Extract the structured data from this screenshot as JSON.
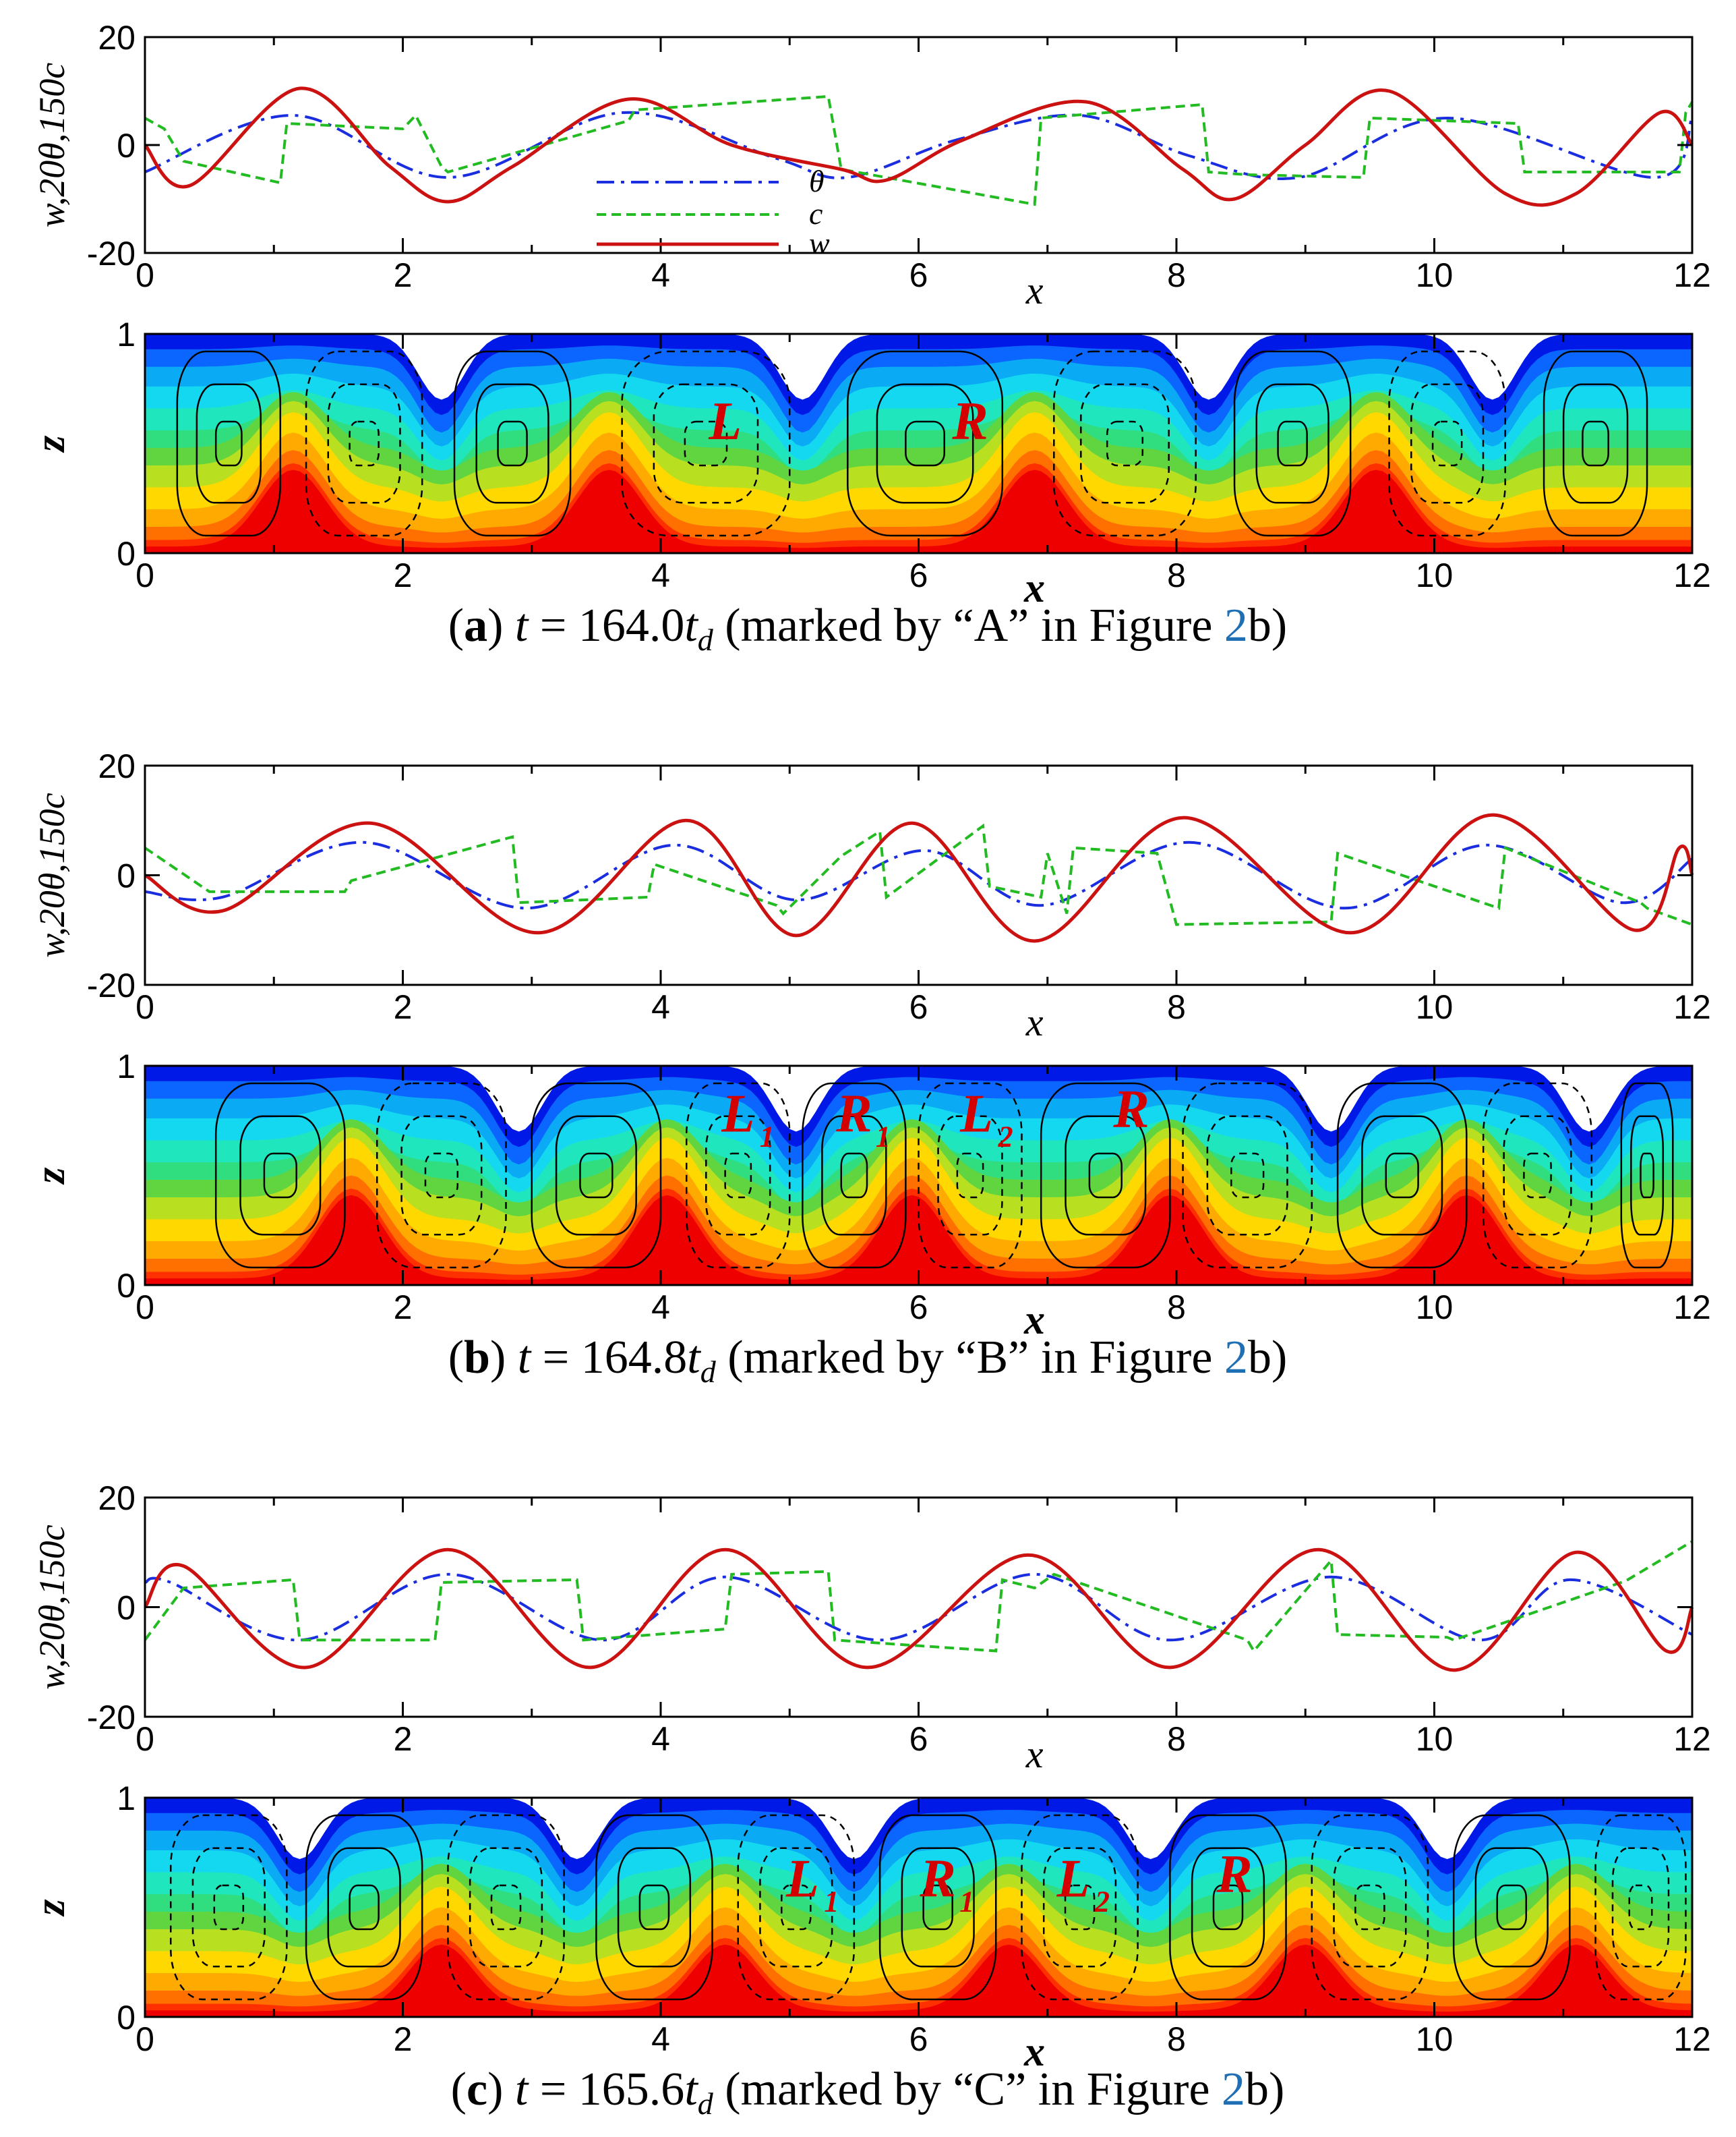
{
  "colors": {
    "w": "#cc1111",
    "theta": "#1a2ee0",
    "c": "#22bb22",
    "cell_label": "#d40000",
    "figure_ref": "#1f6fb5",
    "contour_bands": [
      "#0019e6",
      "#0a66ff",
      "#0aaaf5",
      "#14d8f0",
      "#20e6be",
      "#30de80",
      "#60d540",
      "#b8e020",
      "#ffd800",
      "#ffaa00",
      "#ff7000",
      "#ff3000",
      "#ee0000"
    ]
  },
  "legend": {
    "theta": "θ",
    "c": "c",
    "w": "w"
  },
  "panels": [
    {
      "id": "a",
      "caption": {
        "letter": "(a)",
        "pre": "t",
        "eq": "= 164.0",
        "sym": "t",
        "sub": "d",
        "text": "(marked by “A” in Figure ",
        "ref": "2",
        "tail": "b)"
      },
      "cells": [
        {
          "text": "L",
          "sub": "",
          "x": 4.5,
          "z": 0.52
        },
        {
          "text": "R",
          "sub": "",
          "x": 6.4,
          "z": 0.52
        }
      ]
    },
    {
      "id": "b",
      "caption": {
        "letter": "(b)",
        "pre": "t",
        "eq": "= 164.8",
        "sym": "t",
        "sub": "d",
        "text": "(marked by “B” in Figure ",
        "ref": "2",
        "tail": "b)"
      },
      "cells": [
        {
          "text": "L",
          "sub": "1",
          "x": 4.6,
          "z": 0.7
        },
        {
          "text": "R",
          "sub": "1",
          "x": 5.5,
          "z": 0.7
        },
        {
          "text": "L",
          "sub": "2",
          "x": 6.45,
          "z": 0.7
        },
        {
          "text": "R",
          "sub": "",
          "x": 7.65,
          "z": 0.72
        }
      ]
    },
    {
      "id": "c",
      "caption": {
        "letter": "(c)",
        "pre": "t",
        "eq": "= 165.6",
        "sym": "t",
        "sub": "d",
        "text": "(marked by “C” in Figure ",
        "ref": "2",
        "tail": "b)"
      },
      "cells": [
        {
          "text": "L",
          "sub": "1",
          "x": 5.1,
          "z": 0.55
        },
        {
          "text": "R",
          "sub": "1",
          "x": 6.15,
          "z": 0.55
        },
        {
          "text": "L",
          "sub": "2",
          "x": 7.2,
          "z": 0.55
        },
        {
          "text": "R",
          "sub": "",
          "x": 8.45,
          "z": 0.57
        }
      ]
    }
  ],
  "chart_data": [
    {
      "type": "line",
      "panel": "a",
      "xlabel": "x",
      "ylabel": "w,20θ,150c",
      "xlim": [
        0,
        12
      ],
      "ylim": [
        -20,
        20
      ],
      "xticks": [
        "0",
        "2",
        "4",
        "6",
        "8",
        "10",
        "12"
      ],
      "yticks": [
        "-20",
        "0",
        "20"
      ],
      "legend_position": "inside-bottom-center",
      "series": [
        {
          "name": "θ",
          "style": "dash-dot",
          "x": [
            0,
            1.15,
            2.35,
            3.7,
            4.9,
            5.45,
            6.3,
            7.25,
            8.1,
            8.95,
            10.1,
            11.7,
            12
          ],
          "y": [
            -5,
            5.5,
            -6,
            6,
            -2.5,
            -6,
            1,
            5.5,
            -2,
            -6,
            5,
            -6,
            5
          ]
        },
        {
          "name": "c",
          "style": "dashed",
          "x": [
            0,
            0.15,
            0.3,
            1.05,
            1.1,
            2.0,
            2.1,
            2.3,
            2.35,
            3.75,
            3.8,
            5.3,
            5.4,
            6.9,
            6.95,
            8.2,
            8.25,
            8.55,
            9.45,
            9.5,
            10.65,
            10.7,
            11.9,
            11.95,
            12
          ],
          "y": [
            5,
            3,
            -3,
            -7,
            4,
            3,
            5.5,
            -4,
            -5,
            4.5,
            6.5,
            9,
            -4.5,
            -11,
            5,
            7.5,
            -5,
            -5.5,
            -6,
            5,
            4,
            -5,
            -5,
            6,
            8
          ]
        },
        {
          "name": "w",
          "style": "solid",
          "x": [
            0,
            0.35,
            1.2,
            1.9,
            2.35,
            2.85,
            3.75,
            4.55,
            5.4,
            5.75,
            6.35,
            7.3,
            8.05,
            8.45,
            9.0,
            9.65,
            10.55,
            11.1,
            11.75,
            12
          ],
          "y": [
            0,
            -7.5,
            10.5,
            -4,
            -10.5,
            -4,
            8.5,
            0,
            -4.5,
            -6.5,
            1,
            8,
            -4.5,
            -10,
            0,
            10,
            -9,
            -9,
            6,
            0
          ]
        }
      ]
    },
    {
      "type": "heatmap",
      "panel": "a",
      "xlabel": "x",
      "ylabel": "z",
      "xlim": [
        0,
        12
      ],
      "ylim": [
        0,
        1
      ],
      "xticks": [
        "0",
        "2",
        "4",
        "6",
        "8",
        "10",
        "12"
      ],
      "yticks": [
        "0",
        "1"
      ],
      "plumes": {
        "down_x": [
          2.3,
          5.1,
          8.25,
          10.45
        ],
        "up_x": [
          1.15,
          3.6,
          6.9,
          9.55
        ],
        "down_depth": 0.3,
        "up_height": 0.35
      },
      "rolls": [
        {
          "x": 0.65,
          "z": 0.5,
          "sign": 1,
          "rx": 0.4
        },
        {
          "x": 1.7,
          "z": 0.5,
          "sign": -1,
          "rx": 0.45
        },
        {
          "x": 2.85,
          "z": 0.5,
          "sign": 1,
          "rx": 0.45
        },
        {
          "x": 4.35,
          "z": 0.5,
          "sign": -1,
          "rx": 0.65
        },
        {
          "x": 6.05,
          "z": 0.5,
          "sign": 1,
          "rx": 0.6
        },
        {
          "x": 7.6,
          "z": 0.5,
          "sign": -1,
          "rx": 0.55
        },
        {
          "x": 8.9,
          "z": 0.5,
          "sign": 1,
          "rx": 0.45
        },
        {
          "x": 10.1,
          "z": 0.5,
          "sign": -1,
          "rx": 0.45
        },
        {
          "x": 11.25,
          "z": 0.5,
          "sign": 1,
          "rx": 0.4
        }
      ]
    },
    {
      "type": "line",
      "panel": "b",
      "xlabel": "x",
      "ylabel": "w,20θ,150c",
      "xlim": [
        0,
        12
      ],
      "ylim": [
        -20,
        20
      ],
      "xticks": [
        "0",
        "2",
        "4",
        "6",
        "8",
        "10",
        "12"
      ],
      "yticks": [
        "-20",
        "0",
        "20"
      ],
      "series": [
        {
          "name": "θ",
          "style": "dash-dot",
          "x": [
            0,
            0.6,
            1.7,
            2.95,
            4.1,
            5.05,
            6.05,
            6.95,
            8.1,
            9.3,
            10.4,
            11.45,
            12
          ],
          "y": [
            -3,
            -4,
            6,
            -6,
            5.5,
            -4.5,
            4.5,
            -5.5,
            6,
            -6,
            5.5,
            -5,
            3
          ]
        },
        {
          "name": "c",
          "style": "dashed",
          "x": [
            0,
            0.5,
            1.55,
            1.6,
            2.85,
            2.9,
            3.9,
            3.95,
            4.9,
            4.95,
            5.4,
            5.7,
            5.75,
            6.5,
            6.55,
            6.95,
            7.0,
            7.15,
            7.2,
            7.85,
            8.0,
            9.2,
            9.25,
            10.5,
            10.55,
            11.6,
            11.65,
            12
          ],
          "y": [
            5,
            -3,
            -3,
            -1,
            7,
            -5,
            -4,
            2,
            -5.5,
            -7,
            3.5,
            8,
            -4,
            9,
            -2,
            -4,
            4,
            -7,
            5,
            4,
            -9,
            -8.5,
            4,
            -6,
            5,
            -5,
            -6,
            -9
          ]
        },
        {
          "name": "w",
          "style": "solid",
          "x": [
            0,
            0.6,
            1.75,
            3.05,
            4.2,
            5.05,
            5.95,
            6.9,
            8.05,
            9.35,
            10.45,
            11.55,
            11.9,
            12
          ],
          "y": [
            0,
            -6.5,
            9.5,
            -10.5,
            10,
            -11,
            9.5,
            -12,
            10.5,
            -10.5,
            11,
            -10,
            5,
            0
          ]
        }
      ]
    },
    {
      "type": "heatmap",
      "panel": "b",
      "xlabel": "x",
      "ylabel": "z",
      "xlim": [
        0,
        12
      ],
      "ylim": [
        0,
        1
      ],
      "xticks": [
        "0",
        "2",
        "4",
        "6",
        "8",
        "10",
        "12"
      ],
      "yticks": [
        "0",
        "1"
      ],
      "plumes": {
        "down_x": [
          2.9,
          5.05,
          9.2,
          11.2
        ],
        "up_x": [
          1.6,
          4.05,
          5.95,
          7.95,
          10.25
        ],
        "down_depth": 0.3,
        "up_height": 0.38
      },
      "rolls": [
        {
          "x": 1.05,
          "z": 0.5,
          "sign": 1,
          "rx": 0.5
        },
        {
          "x": 2.3,
          "z": 0.5,
          "sign": -1,
          "rx": 0.5
        },
        {
          "x": 3.5,
          "z": 0.5,
          "sign": 1,
          "rx": 0.5
        },
        {
          "x": 4.6,
          "z": 0.5,
          "sign": -1,
          "rx": 0.4
        },
        {
          "x": 5.5,
          "z": 0.5,
          "sign": 1,
          "rx": 0.4
        },
        {
          "x": 6.4,
          "z": 0.5,
          "sign": -1,
          "rx": 0.4
        },
        {
          "x": 7.45,
          "z": 0.5,
          "sign": 1,
          "rx": 0.5
        },
        {
          "x": 8.55,
          "z": 0.5,
          "sign": -1,
          "rx": 0.5
        },
        {
          "x": 9.75,
          "z": 0.5,
          "sign": 1,
          "rx": 0.5
        },
        {
          "x": 10.8,
          "z": 0.5,
          "sign": -1,
          "rx": 0.42
        },
        {
          "x": 11.65,
          "z": 0.5,
          "sign": 1,
          "rx": 0.2
        }
      ]
    },
    {
      "type": "line",
      "panel": "c",
      "xlabel": "x",
      "ylabel": "w,20θ,150c",
      "xlim": [
        0,
        12
      ],
      "ylim": [
        -20,
        20
      ],
      "xticks": [
        "0",
        "2",
        "4",
        "6",
        "8",
        "10",
        "12"
      ],
      "yticks": [
        "-20",
        "0",
        "20"
      ],
      "series": [
        {
          "name": "θ",
          "style": "dash-dot",
          "x": [
            0,
            0.2,
            1.2,
            2.35,
            3.55,
            4.5,
            5.7,
            6.9,
            7.95,
            9.2,
            10.35,
            11.05,
            12
          ],
          "y": [
            4.5,
            4.5,
            -6,
            6,
            -6,
            5.5,
            -6,
            6,
            -6,
            5.5,
            -6,
            5,
            -5
          ]
        },
        {
          "name": "c",
          "style": "dashed",
          "x": [
            0,
            0.3,
            1.15,
            1.2,
            2.25,
            2.3,
            3.35,
            3.4,
            4.5,
            4.55,
            5.3,
            5.35,
            6.6,
            6.65,
            6.9,
            7.05,
            8.55,
            8.6,
            9.2,
            9.25,
            10.1,
            10.15,
            11.45,
            11.5,
            12
          ],
          "y": [
            -6,
            3.5,
            5,
            -6,
            -6,
            4.5,
            5,
            -6,
            -4,
            6,
            6.5,
            -6,
            -8,
            5,
            3.5,
            6,
            -6,
            -8,
            8.5,
            -5,
            -5.5,
            -6,
            4.5,
            5,
            12
          ]
        },
        {
          "name": "w",
          "style": "solid",
          "x": [
            0,
            0.3,
            1.25,
            2.35,
            3.45,
            4.5,
            5.6,
            6.85,
            7.95,
            9.1,
            10.15,
            11.1,
            11.8,
            12
          ],
          "y": [
            0,
            7.5,
            -11,
            10.5,
            -11,
            10.5,
            -11,
            9.5,
            -11,
            10.5,
            -11.5,
            10,
            -8,
            0
          ]
        }
      ]
    },
    {
      "type": "heatmap",
      "panel": "c",
      "xlabel": "x",
      "ylabel": "z",
      "xlim": [
        0,
        12
      ],
      "ylim": [
        0,
        1
      ],
      "xticks": [
        "0",
        "2",
        "4",
        "6",
        "8",
        "10",
        "12"
      ],
      "yticks": [
        "0",
        "1"
      ],
      "plumes": {
        "down_x": [
          1.2,
          3.35,
          5.5,
          7.8,
          10.1
        ],
        "up_x": [
          2.3,
          4.5,
          6.7,
          9.0,
          11.1
        ],
        "down_depth": 0.28,
        "up_height": 0.3
      },
      "rolls": [
        {
          "x": 0.65,
          "z": 0.5,
          "sign": -1,
          "rx": 0.45
        },
        {
          "x": 1.7,
          "z": 0.5,
          "sign": 1,
          "rx": 0.45
        },
        {
          "x": 2.8,
          "z": 0.5,
          "sign": -1,
          "rx": 0.45
        },
        {
          "x": 3.95,
          "z": 0.5,
          "sign": 1,
          "rx": 0.45
        },
        {
          "x": 5.05,
          "z": 0.5,
          "sign": -1,
          "rx": 0.45
        },
        {
          "x": 6.15,
          "z": 0.5,
          "sign": 1,
          "rx": 0.45
        },
        {
          "x": 7.25,
          "z": 0.5,
          "sign": -1,
          "rx": 0.45
        },
        {
          "x": 8.4,
          "z": 0.5,
          "sign": 1,
          "rx": 0.45
        },
        {
          "x": 9.5,
          "z": 0.5,
          "sign": -1,
          "rx": 0.45
        },
        {
          "x": 10.6,
          "z": 0.5,
          "sign": 1,
          "rx": 0.45
        },
        {
          "x": 11.6,
          "z": 0.5,
          "sign": -1,
          "rx": 0.35
        }
      ]
    }
  ]
}
